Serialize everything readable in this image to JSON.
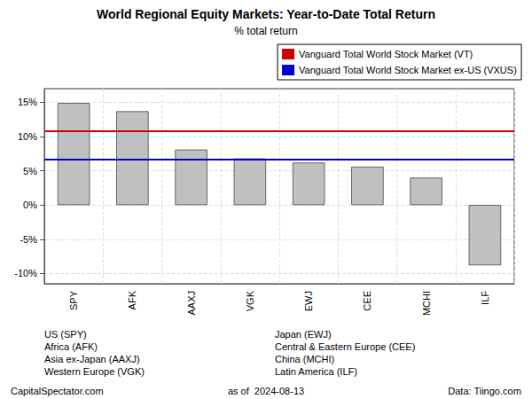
{
  "chart_data": {
    "type": "bar",
    "title": "World Regional Equity Markets: Year-to-Date Total Return",
    "subtitle": "% total return",
    "categories": [
      "SPY",
      "AFK",
      "AAXJ",
      "VGK",
      "EWJ",
      "CEE",
      "MCHI",
      "ILF"
    ],
    "values": [
      14.9,
      13.7,
      8.1,
      6.8,
      6.2,
      5.6,
      4.0,
      -8.8
    ],
    "color": "#c0c0c0",
    "reference_lines": [
      {
        "name": "Vanguard Total World Stock Market (VT)",
        "value": 10.8,
        "color": "#cc0000"
      },
      {
        "name": "Vanguard Total World Stock Market ex-US (VXUS)",
        "value": 6.7,
        "color": "#0000cc"
      }
    ],
    "ylim": [
      -11.5,
      17
    ],
    "yticks": [
      {
        "value": -10,
        "label": "-10%"
      },
      {
        "value": -5,
        "label": "-5%"
      },
      {
        "value": 0,
        "label": "0%"
      },
      {
        "value": 5,
        "label": "5%"
      },
      {
        "value": 10,
        "label": "10%"
      },
      {
        "value": 15,
        "label": "15%"
      }
    ],
    "grid": true,
    "legend": "upper right",
    "annotations": [
      "US (SPY)\nAfrica (AFK)\nAsia ex-Japan (AAXJ)\nWestern Europe (VGK)",
      "Japan (EWJ)\nCentral & Eastern Europe (CEE)\nChina (MCHI)\nLatin America (ILF)"
    ],
    "footer": [
      "CapitalSpectator.com",
      "as of  2024-08-13",
      "Data: Tiingo.com"
    ]
  }
}
